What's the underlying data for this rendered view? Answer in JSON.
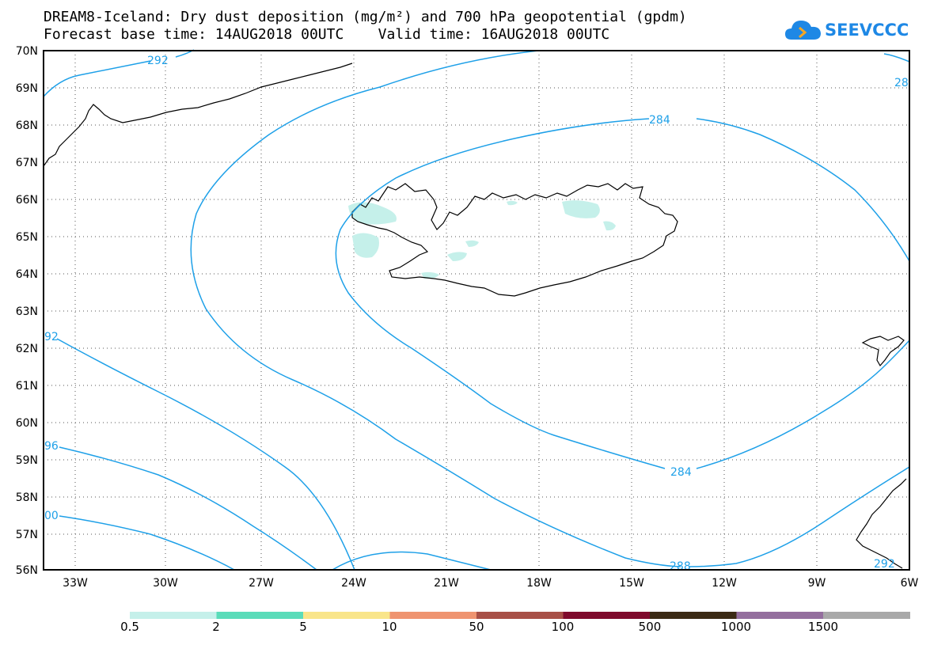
{
  "title": {
    "line1": "DREAM8-Iceland: Dry dust deposition (mg/m²) and 700 hPa geopotential (gpdm)",
    "line2": "Forecast base time: 14AUG2018 00UTC    Valid time: 16AUG2018 00UTC"
  },
  "logo": {
    "text": "SEEVCCC",
    "icon": "cloud-icon"
  },
  "map": {
    "lat_labels": [
      "70N",
      "69N",
      "68N",
      "67N",
      "66N",
      "65N",
      "64N",
      "63N",
      "62N",
      "61N",
      "60N",
      "59N",
      "58N",
      "57N",
      "56N"
    ],
    "lon_labels": [
      "33W",
      "30W",
      "27W",
      "24W",
      "21W",
      "18W",
      "15W",
      "12W",
      "9W",
      "6W"
    ],
    "contour_labels": [
      "292",
      "284",
      "284",
      "28",
      "92",
      "96",
      "00",
      "288",
      "292"
    ],
    "colors": {
      "contour": "#1ea0e8",
      "coast": "#000000",
      "dust_low": "#c5f0ea"
    }
  },
  "legend": {
    "colors": [
      "#c5f0ea",
      "#5adcb9",
      "#f9e58a",
      "#ef9470",
      "#a85047",
      "#7f0a2c",
      "#3b2a14",
      "#946f9e",
      "#a9a9a9"
    ],
    "labels": [
      "0.5",
      "2",
      "5",
      "10",
      "50",
      "100",
      "500",
      "1000",
      "1500"
    ]
  }
}
